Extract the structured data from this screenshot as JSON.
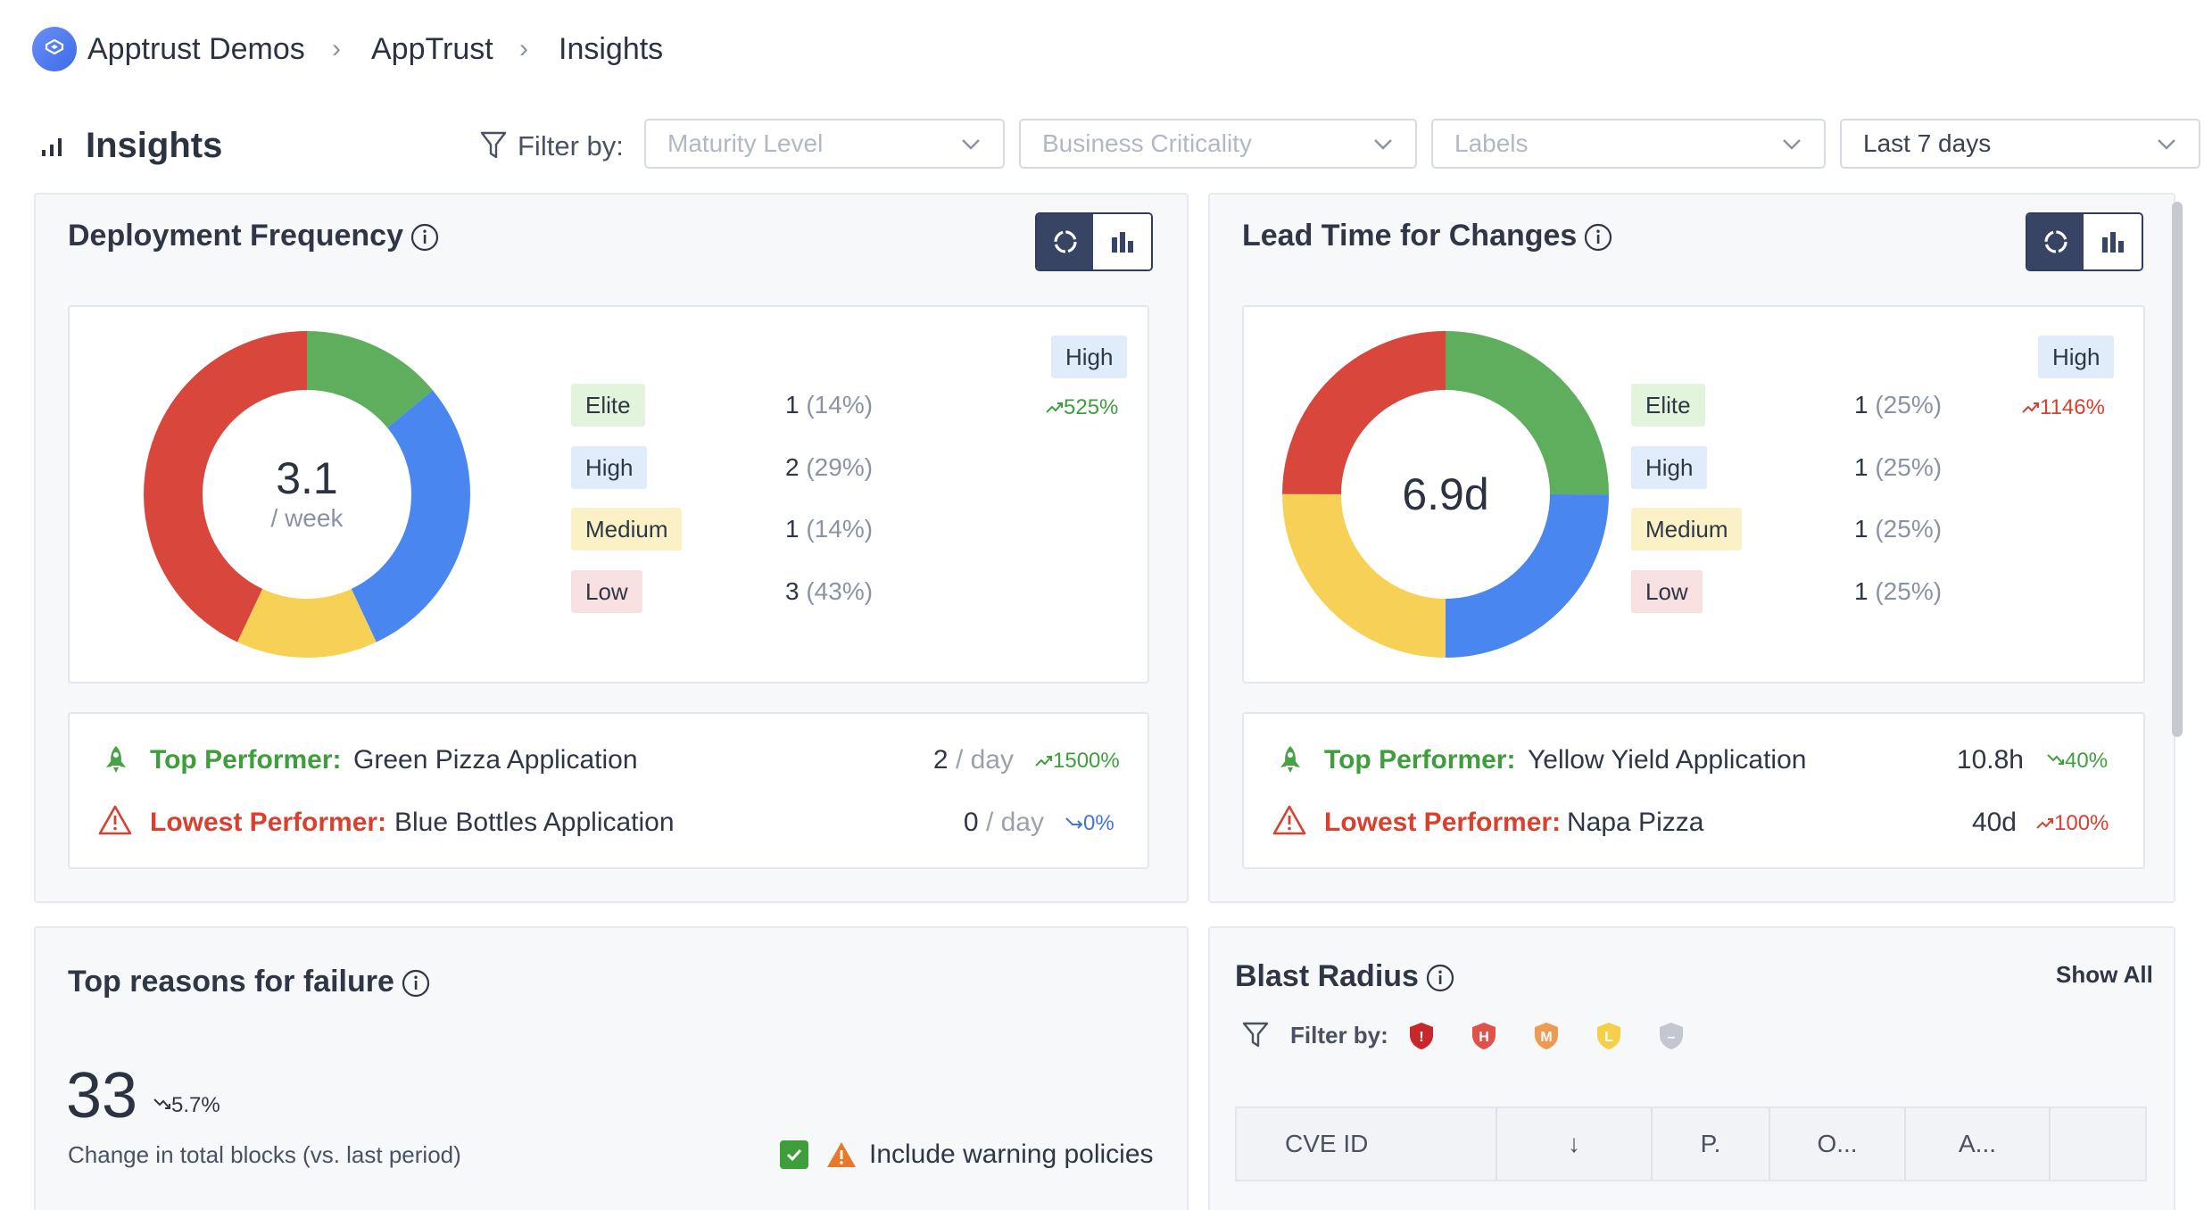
{
  "breadcrumb": [
    "Apptrust Demos",
    "AppTrust",
    "Insights"
  ],
  "page": {
    "title": "Insights"
  },
  "filters": {
    "label": "Filter by:",
    "maturity_placeholder": "Maturity Level",
    "criticality_placeholder": "Business Criticality",
    "labels_placeholder": "Labels",
    "period": "Last 7 days"
  },
  "deployment_frequency": {
    "title": "Deployment Frequency",
    "center_value": "3.1",
    "center_unit": "/ week",
    "rating": "High",
    "rating_trend": "525%",
    "levels": [
      {
        "label": "Elite",
        "count": "1",
        "pct": "(14%)"
      },
      {
        "label": "High",
        "count": "2",
        "pct": "(29%)"
      },
      {
        "label": "Medium",
        "count": "1",
        "pct": "(14%)"
      },
      {
        "label": "Low",
        "count": "3",
        "pct": "(43%)"
      }
    ],
    "top_label": "Top Performer:",
    "top_name": "Green Pizza Application",
    "top_value": "2",
    "top_unit": "/ day",
    "top_trend": "1500%",
    "low_label": "Lowest Performer:",
    "low_name": "Blue Bottles Application",
    "low_value": "0",
    "low_unit": "/ day",
    "low_trend": "0%"
  },
  "lead_time": {
    "title": "Lead Time for Changes",
    "center_value": "6.9d",
    "rating": "High",
    "rating_trend": "1146%",
    "levels": [
      {
        "label": "Elite",
        "count": "1",
        "pct": "(25%)"
      },
      {
        "label": "High",
        "count": "1",
        "pct": "(25%)"
      },
      {
        "label": "Medium",
        "count": "1",
        "pct": "(25%)"
      },
      {
        "label": "Low",
        "count": "1",
        "pct": "(25%)"
      }
    ],
    "top_label": "Top Performer:",
    "top_name": "Yellow Yield Application",
    "top_value": "10.8h",
    "top_trend": "40%",
    "low_label": "Lowest Performer:",
    "low_name": "Napa Pizza",
    "low_value": "40d",
    "low_trend": "100%"
  },
  "failure": {
    "title": "Top reasons for failure",
    "total": "33",
    "trend": "5.7%",
    "caption": "Change in total blocks (vs. last period)",
    "include_warning": "Include warning policies"
  },
  "blast_radius": {
    "title": "Blast Radius",
    "show_all": "Show All",
    "filter_label": "Filter by:",
    "severity_letters": [
      "!",
      "H",
      "M",
      "L",
      "–"
    ],
    "columns": [
      "CVE ID",
      "↓",
      "P.",
      "O...",
      "A..."
    ]
  },
  "colors": {
    "elite": "#5eae5e",
    "high": "#4a86f0",
    "medium": "#f7d155",
    "low": "#d9463b",
    "accent": "#374464"
  }
}
